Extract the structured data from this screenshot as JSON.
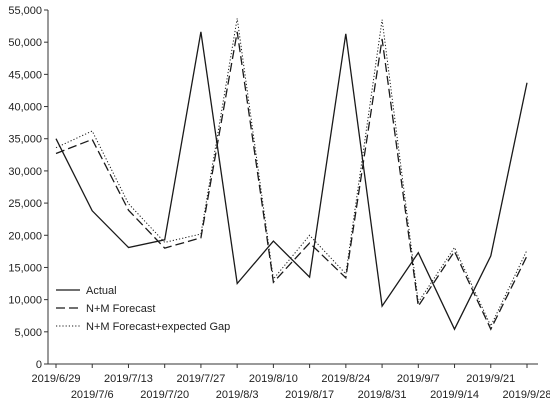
{
  "chart_data": {
    "type": "line",
    "title": "",
    "xlabel": "",
    "ylabel": "",
    "categories": [
      "2019/6/29",
      "2019/7/6",
      "2019/7/13",
      "2019/7/20",
      "2019/7/27",
      "2019/8/3",
      "2019/8/10",
      "2019/8/17",
      "2019/8/24",
      "2019/8/31",
      "2019/9/7",
      "2019/9/14",
      "2019/9/21",
      "2019/9/28"
    ],
    "ylim": [
      0,
      55000
    ],
    "yticks": [
      0,
      5000,
      10000,
      15000,
      20000,
      25000,
      30000,
      35000,
      40000,
      45000,
      50000,
      55000
    ],
    "ytick_labels": [
      "0",
      "5,000",
      "10,000",
      "15,000",
      "20,000",
      "25,000",
      "30,000",
      "35,000",
      "40,000",
      "45,000",
      "50,000",
      "55,000"
    ],
    "series": [
      {
        "name": "Actual",
        "style": "solid",
        "color": "#1a1a1a",
        "x": [
          "2019/6/29",
          "2019/7/6",
          "2019/7/13",
          "2019/7/20",
          "2019/7/27",
          "2019/8/3",
          "2019/8/10",
          "2019/8/17",
          "2019/8/24",
          "2019/8/31",
          "2019/9/7",
          "2019/9/14",
          "2019/9/21",
          "2019/9/28"
        ],
        "values": [
          35000,
          23800,
          18100,
          19300,
          51600,
          12500,
          19100,
          13500,
          51300,
          9000,
          17300,
          5400,
          16800,
          43700
        ]
      },
      {
        "name": "N+M Forecast",
        "style": "dashed",
        "color": "#1a1a1a",
        "x": [
          "2019/6/29",
          "2019/7/6",
          "2019/7/13",
          "2019/7/20",
          "2019/7/27",
          "2019/8/3",
          "2019/8/10",
          "2019/8/17",
          "2019/8/24",
          "2019/8/31",
          "2019/9/7",
          "2019/9/14",
          "2019/9/21",
          "2019/9/28"
        ],
        "values": [
          32700,
          34900,
          23900,
          18000,
          19600,
          51600,
          12700,
          18800,
          13400,
          50500,
          9000,
          17500,
          5400,
          16800
        ]
      },
      {
        "name": "N+M Forecast+expected Gap",
        "style": "dotted",
        "color": "#1a1a1a",
        "x": [
          "2019/6/29",
          "2019/7/6",
          "2019/7/13",
          "2019/7/20",
          "2019/7/27",
          "2019/8/3",
          "2019/8/10",
          "2019/8/17",
          "2019/8/24",
          "2019/8/31",
          "2019/9/7",
          "2019/9/14",
          "2019/9/21",
          "2019/9/28"
        ],
        "values": [
          33600,
          36200,
          24900,
          18900,
          20200,
          53700,
          13200,
          20000,
          14000,
          53500,
          9600,
          18100,
          5900,
          17700
        ]
      }
    ],
    "legend": {
      "position": "bottom-left",
      "entries": [
        "Actual",
        "N+M Forecast",
        "N+M Forecast+expected Gap"
      ]
    },
    "grid": false
  }
}
